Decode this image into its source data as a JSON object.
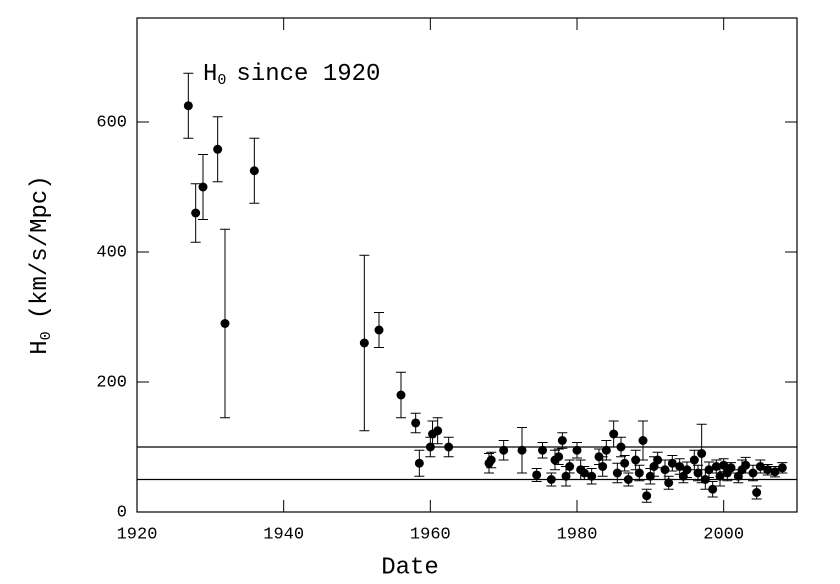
{
  "chart_data": {
    "type": "scatter",
    "annotation": {
      "symbol": "H",
      "subscript": "0",
      "text": "since 1920"
    },
    "xlabel": "Date",
    "ylabel": {
      "symbol": "H",
      "subscript": "0",
      "text": "(km/s/Mpc)"
    },
    "xlim": [
      1920,
      2010
    ],
    "ylim": [
      0,
      760
    ],
    "xticks": [
      1920,
      1940,
      1960,
      1980,
      2000
    ],
    "yticks": [
      0,
      200,
      400,
      600
    ],
    "reference_lines": [
      100,
      50
    ],
    "color": "#000000",
    "series": [
      {
        "x": [
          1927,
          1928,
          1929,
          1931,
          1932,
          1936,
          1951,
          1953,
          1956,
          1958,
          1958.5,
          1960,
          1960.3,
          1961,
          1962.5,
          1968,
          1968.3,
          1970,
          1972.5,
          1974.5,
          1975.3,
          1976.5,
          1977,
          1977.5,
          1978,
          1978.5,
          1979,
          1980,
          1980.5,
          1981,
          1982,
          1983,
          1983.5,
          1984,
          1985,
          1985.5,
          1986,
          1986.5,
          1987,
          1988,
          1988.5,
          1989,
          1989.5,
          1990,
          1990.5,
          1991,
          1992,
          1992.5,
          1993,
          1994,
          1994.5,
          1995,
          1996,
          1996.5,
          1997,
          1997.5,
          1998,
          1998.5,
          1999,
          1999.5,
          2000,
          2000.5,
          2001,
          2002,
          2002.5,
          2003,
          2004,
          2004.5,
          2005,
          2006,
          2007,
          2008
        ],
        "values": [
          625,
          460,
          500,
          558,
          290,
          525,
          260,
          280,
          180,
          137,
          75,
          100,
          120,
          125,
          100,
          75,
          80,
          95,
          95,
          57,
          95,
          50,
          80,
          85,
          110,
          55,
          70,
          95,
          65,
          60,
          55,
          85,
          70,
          95,
          120,
          60,
          100,
          75,
          50,
          80,
          60,
          110,
          25,
          55,
          70,
          80,
          65,
          45,
          75,
          70,
          55,
          65,
          80,
          60,
          90,
          50,
          65,
          35,
          70,
          55,
          72,
          60,
          68,
          55,
          65,
          72,
          60,
          30,
          70,
          65,
          62,
          68
        ],
        "errors": [
          50,
          45,
          50,
          50,
          145,
          50,
          135,
          27,
          35,
          15,
          20,
          15,
          20,
          20,
          15,
          15,
          12,
          15,
          35,
          10,
          12,
          10,
          15,
          12,
          12,
          15,
          10,
          12,
          15,
          10,
          12,
          12,
          15,
          15,
          20,
          15,
          15,
          12,
          10,
          15,
          12,
          30,
          10,
          12,
          15,
          12,
          15,
          10,
          12,
          12,
          10,
          12,
          15,
          12,
          45,
          15,
          12,
          12,
          10,
          15,
          10,
          12,
          8,
          10,
          15,
          12,
          12,
          10,
          10,
          8,
          8,
          8
        ]
      }
    ]
  }
}
